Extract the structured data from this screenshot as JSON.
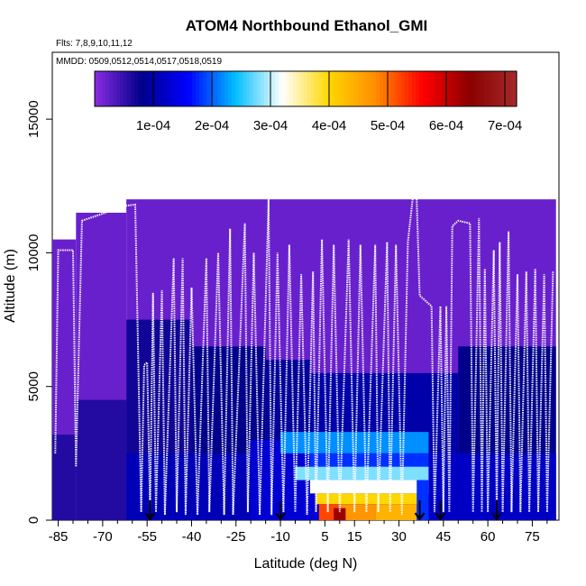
{
  "chart_data": {
    "type": "heatmap",
    "title": "ATOM4 Northbound Ethanol_GMI",
    "subtitle_flights": "Flts: 7,8,9,10,11,12",
    "subtitle_dates": "MMDD: 0509,0512,0514,0517,0518,0519",
    "xlabel": "Latitude (deg N)",
    "ylabel": "Altitude (m)",
    "xlim": [
      -87,
      84
    ],
    "ylim": [
      0,
      17500
    ],
    "x_ticks": [
      -85,
      -70,
      -55,
      -40,
      -25,
      -10,
      5,
      15,
      30,
      45,
      60,
      75
    ],
    "x_minor_ticks": [
      -80,
      -75,
      -65,
      -60,
      -50,
      -45,
      -35,
      -30,
      -20,
      -15,
      -5,
      0,
      10,
      20,
      25,
      35,
      40,
      50,
      55,
      65,
      70,
      80
    ],
    "y_ticks": [
      0,
      5000,
      10000,
      15000
    ],
    "colorbar": {
      "range": [
        0,
        0.00072
      ],
      "tick_values": [
        0.0001,
        0.0002,
        0.0003,
        0.0004,
        0.0005,
        0.0006,
        0.0007
      ],
      "tick_labels": [
        "1e-04",
        "2e-04",
        "3e-04",
        "4e-04",
        "5e-04",
        "6e-04",
        "7e-04"
      ],
      "colors": [
        "#8a2be2",
        "#00008b",
        "#0000ff",
        "#00bfff",
        "#ffffff",
        "#ffd700",
        "#ff8c00",
        "#ff0000",
        "#8b0000",
        "#a52a2a"
      ]
    },
    "field": {
      "background_value": 1e-05,
      "lat_extent": [
        -87,
        83
      ],
      "cells": [
        {
          "lat": [
            -87,
            -79
          ],
          "alt": [
            0,
            10500
          ],
          "value": 2e-05
        },
        {
          "lat": [
            -79,
            -62
          ],
          "alt": [
            0,
            11500
          ],
          "value": 2e-05
        },
        {
          "lat": [
            -62,
            83
          ],
          "alt": [
            0,
            12000
          ],
          "value": 2e-05
        },
        {
          "lat": [
            -87,
            -79
          ],
          "alt": [
            0,
            3200
          ],
          "value": 6e-05
        },
        {
          "lat": [
            -79,
            -62
          ],
          "alt": [
            0,
            4500
          ],
          "value": 6e-05
        },
        {
          "lat": [
            -62,
            -40
          ],
          "alt": [
            0,
            7500
          ],
          "value": 7e-05
        },
        {
          "lat": [
            -40,
            -15
          ],
          "alt": [
            0,
            6500
          ],
          "value": 8e-05
        },
        {
          "lat": [
            -15,
            0
          ],
          "alt": [
            0,
            6000
          ],
          "value": 9e-05
        },
        {
          "lat": [
            0,
            50
          ],
          "alt": [
            0,
            5500
          ],
          "value": 0.0001
        },
        {
          "lat": [
            50,
            83
          ],
          "alt": [
            0,
            6500
          ],
          "value": 8e-05
        },
        {
          "lat": [
            -62,
            -20
          ],
          "alt": [
            0,
            2500
          ],
          "value": 0.00011
        },
        {
          "lat": [
            -20,
            5
          ],
          "alt": [
            0,
            3000
          ],
          "value": 0.00013
        },
        {
          "lat": [
            5,
            40
          ],
          "alt": [
            0,
            3300
          ],
          "value": 0.00014
        },
        {
          "lat": [
            40,
            83
          ],
          "alt": [
            0,
            2500
          ],
          "value": 0.00012
        },
        {
          "lat": [
            -10,
            40
          ],
          "alt": [
            2500,
            3300
          ],
          "value": 0.00022
        },
        {
          "lat": [
            0,
            40
          ],
          "alt": [
            2000,
            2500
          ],
          "value": 0.00018
        },
        {
          "lat": [
            -5,
            40
          ],
          "alt": [
            1500,
            2000
          ],
          "value": 0.00028
        },
        {
          "lat": [
            0,
            40
          ],
          "alt": [
            1000,
            1500
          ],
          "value": 0.00032
        },
        {
          "lat": [
            2,
            37
          ],
          "alt": [
            600,
            1000
          ],
          "value": 0.0004
        },
        {
          "lat": [
            3,
            10
          ],
          "alt": [
            0,
            600
          ],
          "value": 0.00052
        },
        {
          "lat": [
            10,
            22
          ],
          "alt": [
            0,
            600
          ],
          "value": 0.00047
        },
        {
          "lat": [
            22,
            36
          ],
          "alt": [
            0,
            600
          ],
          "value": 0.00044
        },
        {
          "lat": [
            8,
            12
          ],
          "alt": [
            0,
            450
          ],
          "value": 0.00063
        },
        {
          "lat": [
            36,
            40
          ],
          "alt": [
            0,
            1500
          ],
          "value": 0.00018
        }
      ]
    },
    "flight_track": {
      "color": "#ffffff",
      "points": [
        [
          -86,
          2500
        ],
        [
          -85,
          10100
        ],
        [
          -80,
          10100
        ],
        [
          -79,
          2000
        ],
        [
          -77,
          11200
        ],
        [
          -69,
          11500
        ],
        [
          -67,
          11700
        ],
        [
          -59,
          11800
        ],
        [
          -57,
          300
        ],
        [
          -56,
          5800
        ],
        [
          -55,
          5900
        ],
        [
          -54,
          300
        ],
        [
          -53,
          8500
        ],
        [
          -52,
          300
        ],
        [
          -50,
          8600
        ],
        [
          -49,
          200
        ],
        [
          -46,
          9800
        ],
        [
          -45,
          300
        ],
        [
          -43,
          9800
        ],
        [
          -42,
          200
        ],
        [
          -40,
          8700
        ],
        [
          -38,
          200
        ],
        [
          -35,
          9800
        ],
        [
          -34,
          300
        ],
        [
          -31,
          10000
        ],
        [
          -29,
          200
        ],
        [
          -27,
          10900
        ],
        [
          -26,
          200
        ],
        [
          -22,
          11100
        ],
        [
          -21,
          300
        ],
        [
          -19,
          10000
        ],
        [
          -17,
          200
        ],
        [
          -14,
          12000
        ],
        [
          -13,
          200
        ],
        [
          -11,
          10000
        ],
        [
          -9,
          300
        ],
        [
          -7,
          10300
        ],
        [
          -5,
          300
        ],
        [
          -3,
          9200
        ],
        [
          -1,
          200
        ],
        [
          1,
          9300
        ],
        [
          2,
          300
        ],
        [
          4,
          10500
        ],
        [
          6,
          300
        ],
        [
          8,
          10300
        ],
        [
          10,
          300
        ],
        [
          13,
          10500
        ],
        [
          15,
          300
        ],
        [
          17,
          10300
        ],
        [
          19,
          300
        ],
        [
          22,
          10300
        ],
        [
          23,
          300
        ],
        [
          26,
          10400
        ],
        [
          27,
          300
        ],
        [
          29,
          10300
        ],
        [
          31,
          200
        ],
        [
          33,
          10400
        ],
        [
          35,
          12400
        ],
        [
          36,
          12000
        ],
        [
          37,
          8400
        ],
        [
          39,
          8200
        ],
        [
          41,
          8000
        ],
        [
          42,
          300
        ],
        [
          44,
          8000
        ],
        [
          45,
          300
        ],
        [
          46,
          8000
        ],
        [
          47,
          300
        ],
        [
          48,
          11000
        ],
        [
          50,
          11200
        ],
        [
          54,
          11100
        ],
        [
          55,
          300
        ],
        [
          57,
          11300
        ],
        [
          58,
          300
        ],
        [
          59,
          9400
        ],
        [
          60,
          300
        ],
        [
          62,
          10100
        ],
        [
          63,
          300
        ],
        [
          64,
          10400
        ],
        [
          65,
          300
        ],
        [
          67,
          10800
        ],
        [
          68,
          300
        ],
        [
          70,
          9200
        ],
        [
          71,
          300
        ],
        [
          73,
          9300
        ],
        [
          74,
          300
        ],
        [
          76,
          9400
        ],
        [
          77,
          300
        ],
        [
          79,
          9200
        ],
        [
          80,
          300
        ],
        [
          82,
          9300
        ]
      ]
    },
    "arrows": {
      "color": "#000000",
      "latitudes": [
        -54,
        -10,
        37,
        44,
        63
      ]
    }
  }
}
